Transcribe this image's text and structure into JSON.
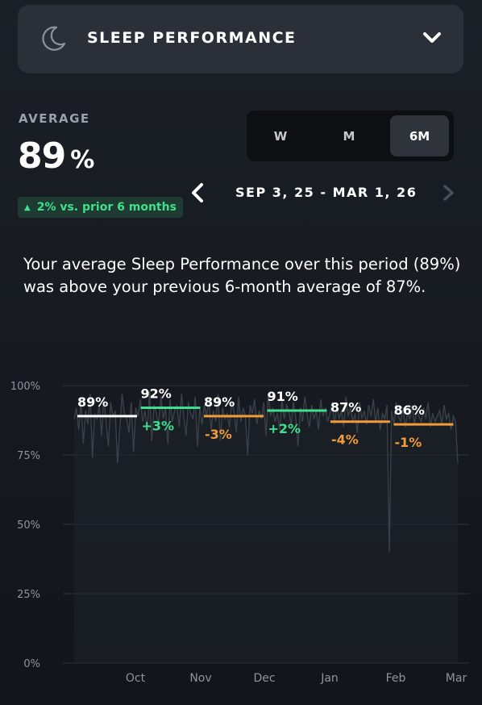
{
  "header": {
    "title": "SLEEP PERFORMANCE",
    "icon": "moon-icon",
    "expand_icon": "chevron-down-icon"
  },
  "average": {
    "label": "AVERAGE",
    "value": "89",
    "unit": "%",
    "delta": "2% vs. prior 6 months",
    "delta_color": "#3ee08e"
  },
  "range_toggle": {
    "options": [
      "W",
      "M",
      "6M"
    ],
    "selected": "6M"
  },
  "date_nav": {
    "range": "SEP 3, 25 - MAR 1, 26"
  },
  "summary": "Your average Sleep Performance over this period (89%) was above your previous 6-month average of 87%.",
  "chart_data": {
    "type": "line",
    "y_ticks": [
      "100%",
      "75%",
      "50%",
      "25%",
      "0%"
    ],
    "ylim": [
      0,
      100
    ],
    "x_ticks": [
      "Oct",
      "Nov",
      "Dec",
      "Jan",
      "Feb",
      "Mar"
    ],
    "grid": true,
    "monthly": [
      {
        "avg": 89,
        "label": "89%",
        "change": "",
        "color": "#ffffff"
      },
      {
        "avg": 92,
        "label": "92%",
        "change": "+3%",
        "color": "#3ee08e"
      },
      {
        "avg": 89,
        "label": "89%",
        "change": "-3%",
        "color": "#f29b38"
      },
      {
        "avg": 91,
        "label": "91%",
        "change": "+2%",
        "color": "#3ee08e"
      },
      {
        "avg": 87,
        "label": "87%",
        "change": "-4%",
        "color": "#f29b38"
      },
      {
        "avg": 86,
        "label": "86%",
        "change": "-1%",
        "color": "#f29b38"
      }
    ],
    "daily": [
      88,
      92,
      84,
      95,
      79,
      91,
      86,
      97,
      74,
      90,
      88,
      93,
      82,
      96,
      87,
      78,
      94,
      89,
      91,
      72,
      85,
      97,
      90,
      88,
      83,
      94,
      76,
      92,
      89,
      95,
      87,
      91,
      84,
      98,
      80,
      93,
      90,
      86,
      96,
      88,
      92,
      79,
      95,
      87,
      91,
      93,
      85,
      97,
      89,
      82,
      94,
      90,
      88,
      96,
      78,
      92,
      86,
      93,
      89,
      95,
      84,
      91,
      87,
      97,
      80,
      92,
      88,
      90,
      85,
      94,
      91,
      83,
      96,
      87,
      92,
      89,
      75,
      93,
      90,
      95,
      86,
      91,
      88,
      94,
      82,
      97,
      89,
      92,
      87,
      90,
      84,
      95,
      88,
      93,
      91,
      86,
      94,
      89,
      78,
      92,
      87,
      96,
      90,
      85,
      93,
      88,
      91,
      84,
      95,
      89,
      92,
      87,
      90,
      94,
      86,
      93,
      88,
      91,
      85,
      96,
      89,
      92,
      87,
      90,
      83,
      94,
      88,
      91,
      86,
      93,
      89,
      95,
      87,
      92,
      84,
      90,
      88,
      93,
      40,
      91,
      86,
      94,
      89,
      87,
      92,
      85,
      90,
      88,
      93,
      86,
      91,
      89,
      87,
      92,
      88,
      94,
      85,
      90,
      87,
      89,
      91,
      86,
      93,
      88,
      90,
      84,
      89,
      87,
      72
    ]
  }
}
